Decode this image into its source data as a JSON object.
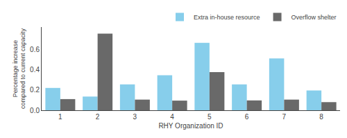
{
  "chart_data": {
    "type": "bar",
    "xlabel": "RHY Organization ID",
    "ylabel": "Percentage increase\ncompared to current capacity",
    "categories": [
      1,
      2,
      3,
      4,
      5,
      6,
      7,
      8
    ],
    "series": [
      {
        "name": "Extra in-house resource",
        "color": "#87CEEB",
        "values": [
          0.22,
          0.135,
          0.255,
          0.345,
          0.665,
          0.255,
          0.51,
          0.195
        ]
      },
      {
        "name": "Overflow shelter",
        "color": "#696969",
        "values": [
          0.11,
          0.755,
          0.105,
          0.095,
          0.375,
          0.097,
          0.105,
          0.08
        ]
      }
    ],
    "ylim": [
      0.0,
      0.82
    ],
    "yticks": [
      {
        "value": 0.0,
        "label": "0.0"
      },
      0.2,
      0.4,
      0.6
    ],
    "grid": false,
    "legend": "upper right"
  }
}
